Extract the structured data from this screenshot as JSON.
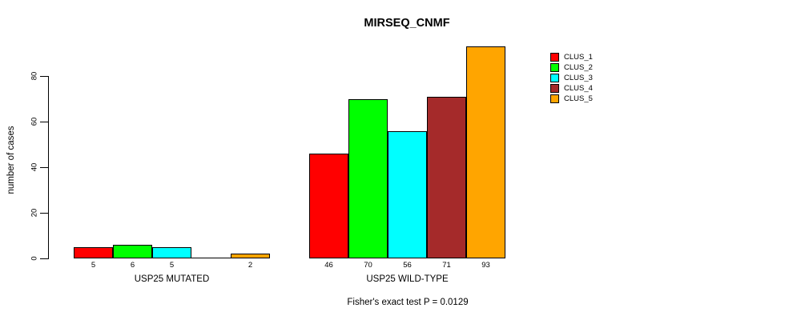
{
  "chart_data": {
    "type": "bar",
    "title": "MIRSEQ_CNMF",
    "ylabel": "number of cases",
    "subtitle": "Fisher's exact test P = 0.0129",
    "yticks": [
      0,
      20,
      40,
      60,
      80
    ],
    "ylim": [
      0,
      93
    ],
    "grid": false,
    "legend_position": "right",
    "background_color": "#ffffff",
    "clusters": [
      {
        "name": "CLUS_1",
        "color": "#FF0000"
      },
      {
        "name": "CLUS_2",
        "color": "#00FF00"
      },
      {
        "name": "CLUS_3",
        "color": "#00FFFF"
      },
      {
        "name": "CLUS_4",
        "color": "#A52A2A"
      },
      {
        "name": "CLUS_5",
        "color": "#FFA500"
      }
    ],
    "groups": [
      {
        "label": "USP25 MUTATED",
        "values": [
          5,
          6,
          5,
          0,
          2
        ],
        "bar_labels": [
          "5",
          "6",
          "5",
          "",
          "2"
        ]
      },
      {
        "label": "USP25 WILD-TYPE",
        "values": [
          46,
          70,
          56,
          71,
          93
        ],
        "bar_labels": [
          "46",
          "70",
          "56",
          "71",
          "93"
        ]
      }
    ]
  }
}
